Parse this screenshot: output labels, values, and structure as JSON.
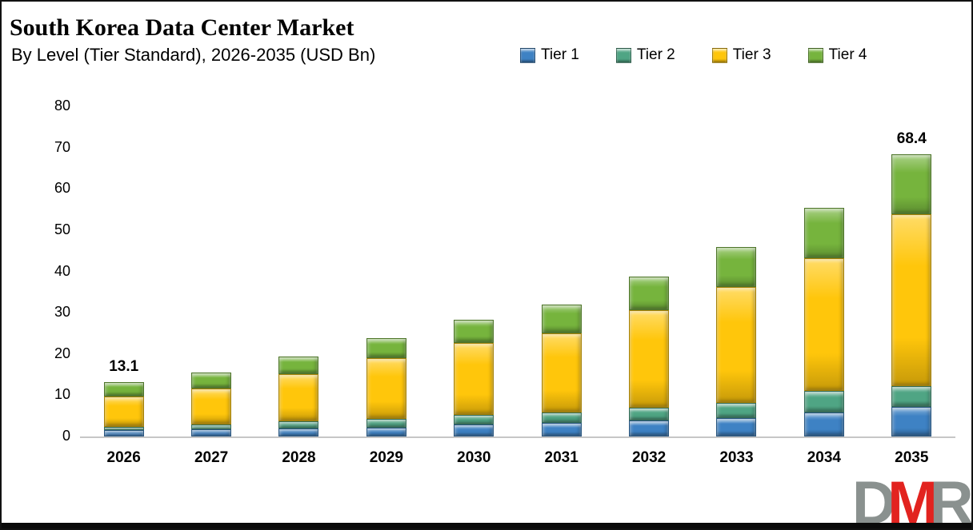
{
  "header": {
    "title": "South Korea Data Center Market",
    "subtitle": "By Level (Tier Standard), 2026-2035 (USD Bn)"
  },
  "chart_data": {
    "type": "bar",
    "stacked": true,
    "title": "South Korea Data Center Market",
    "subtitle": "By Level (Tier Standard), 2026-2035 (USD Bn)",
    "unit": "USD Bn",
    "categories": [
      "2026",
      "2027",
      "2028",
      "2029",
      "2030",
      "2031",
      "2032",
      "2033",
      "2034",
      "2035"
    ],
    "series": [
      {
        "name": "Tier 1",
        "color": "#3E82C4",
        "values": [
          1.5,
          1.7,
          1.9,
          2.2,
          2.9,
          3.2,
          3.9,
          4.5,
          5.8,
          7.1
        ]
      },
      {
        "name": "Tier 2",
        "color": "#4FA584",
        "values": [
          0.8,
          1.2,
          1.7,
          2.0,
          2.4,
          2.6,
          3.0,
          3.6,
          5.2,
          5.2
        ]
      },
      {
        "name": "Tier 3",
        "color": "#FFC60B",
        "values": [
          7.4,
          8.8,
          11.5,
          14.7,
          17.3,
          19.1,
          23.8,
          28.1,
          32.2,
          41.6
        ]
      },
      {
        "name": "Tier 4",
        "color": "#76B43D",
        "values": [
          3.4,
          3.8,
          4.3,
          5.0,
          5.7,
          7.1,
          8.0,
          9.7,
          12.3,
          14.5
        ]
      }
    ],
    "totals": [
      13.1,
      15.5,
      19.4,
      23.9,
      28.3,
      32.0,
      38.7,
      45.9,
      55.5,
      68.4
    ],
    "total_labels_visible": {
      "0": "13.1",
      "9": "68.4"
    },
    "ylim": [
      0,
      80
    ],
    "yticks": [
      0,
      10,
      20,
      30,
      40,
      50,
      60,
      70,
      80
    ],
    "grid": false,
    "legend_position": "top-right",
    "axis_line_color": "#c6c6c6"
  },
  "logo": {
    "letters": [
      {
        "char": "D",
        "color": "#8A918F"
      },
      {
        "char": "M",
        "color": "#E2231F"
      },
      {
        "char": "R",
        "color": "#8A918F"
      }
    ]
  }
}
